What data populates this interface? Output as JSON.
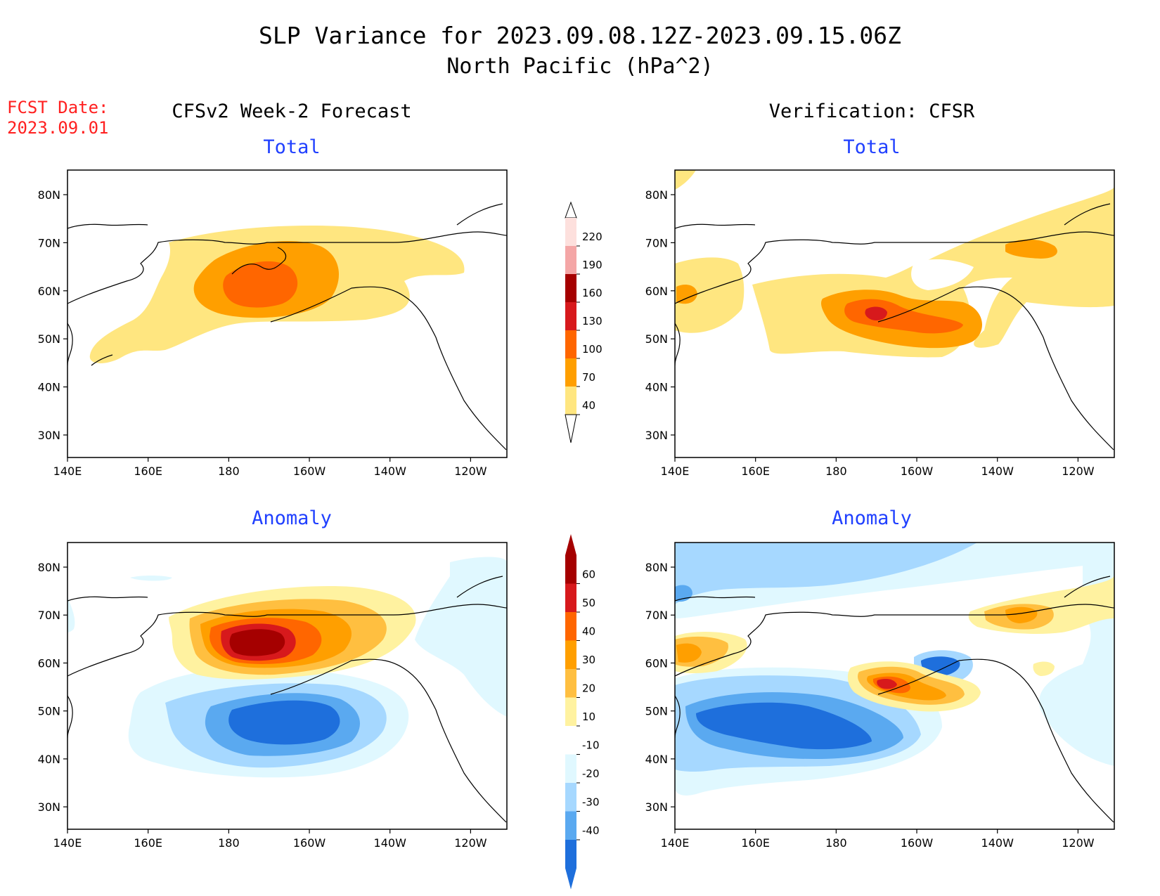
{
  "header": {
    "title_line1": "SLP Variance for 2023.09.08.12Z-2023.09.15.06Z",
    "title_line2": "North Pacific (hPa^2)",
    "fcst_label": "FCST Date:",
    "fcst_date": "2023.09.01"
  },
  "columns": {
    "left": "CFSv2 Week-2 Forecast",
    "right": "Verification: CFSR"
  },
  "panel_titles": {
    "total": "Total",
    "anomaly": "Anomaly"
  },
  "axes": {
    "x_ticks": [
      "140E",
      "160E",
      "180",
      "160W",
      "140W",
      "120W"
    ],
    "y_ticks": [
      "80N",
      "70N",
      "60N",
      "50N",
      "40N",
      "30N"
    ]
  },
  "colorbar_total": {
    "labels": [
      "220",
      "190",
      "160",
      "130",
      "100",
      "70",
      "40"
    ],
    "colors": [
      "#fde0dd",
      "#f4a6a6",
      "#a50000",
      "#d7191c",
      "#ff6600",
      "#ff9f00",
      "#ffe680"
    ]
  },
  "colorbar_anomaly": {
    "labels": [
      "60",
      "50",
      "40",
      "30",
      "20",
      "10",
      "-10",
      "-20",
      "-30",
      "-40"
    ],
    "colors": [
      "#a50000",
      "#d7191c",
      "#ff6600",
      "#ff9f00",
      "#ffbf40",
      "#fff2a0",
      "#ffffff",
      "#e0f8ff",
      "#a6d8ff",
      "#5aa9f0",
      "#1e6fdc"
    ]
  },
  "colors": {
    "title_red": "#ff2020",
    "panel_title_blue": "#2040ff"
  }
}
